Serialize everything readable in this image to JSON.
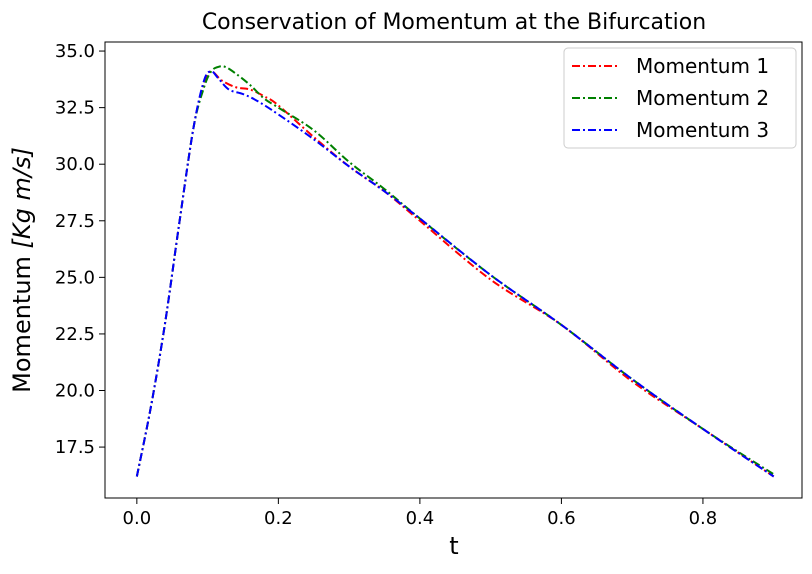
{
  "chart_data": {
    "type": "line",
    "title": "Conservation of Momentum at the Bifurcation",
    "xlabel": "t",
    "ylabel": {
      "prefix": "Momentum ",
      "unit": "[Kg m/s]"
    },
    "xlim": [
      -0.045,
      0.94
    ],
    "ylim": [
      15.25,
      35.4
    ],
    "x_ticks": [
      0.0,
      0.2,
      0.4,
      0.6,
      0.8
    ],
    "x_tick_labels": [
      "0.0",
      "0.2",
      "0.4",
      "0.6",
      "0.8"
    ],
    "y_ticks": [
      17.5,
      20.0,
      22.5,
      25.0,
      27.5,
      30.0,
      32.5,
      35.0
    ],
    "y_tick_labels": [
      "17.5",
      "20.0",
      "22.5",
      "25.0",
      "27.5",
      "30.0",
      "32.5",
      "35.0"
    ],
    "grid": false,
    "legend_position": "top-right",
    "series": [
      {
        "name": "Momentum 1",
        "color": "#ff0000",
        "dash": "dashdot",
        "x": [
          0.0,
          0.02,
          0.04,
          0.06,
          0.08,
          0.095,
          0.105,
          0.12,
          0.14,
          0.16,
          0.18,
          0.2,
          0.25,
          0.3,
          0.35,
          0.4,
          0.5,
          0.6,
          0.7,
          0.8,
          0.9
        ],
        "y": [
          16.2,
          19.3,
          23.0,
          27.4,
          31.6,
          33.6,
          34.1,
          33.7,
          33.4,
          33.3,
          33.0,
          32.6,
          31.2,
          29.9,
          28.8,
          27.5,
          24.9,
          22.9,
          20.4,
          18.3,
          16.2
        ]
      },
      {
        "name": "Momentum 2",
        "color": "#008000",
        "dash": "dashdot",
        "x": [
          0.0,
          0.02,
          0.04,
          0.06,
          0.08,
          0.095,
          0.105,
          0.115,
          0.125,
          0.14,
          0.16,
          0.18,
          0.2,
          0.25,
          0.3,
          0.35,
          0.4,
          0.5,
          0.6,
          0.7,
          0.8,
          0.9
        ],
        "y": [
          16.2,
          19.3,
          23.0,
          27.4,
          31.6,
          33.4,
          34.1,
          34.3,
          34.3,
          34.0,
          33.5,
          32.9,
          32.5,
          31.5,
          30.1,
          28.9,
          27.6,
          25.1,
          22.9,
          20.5,
          18.3,
          16.3
        ]
      },
      {
        "name": "Momentum 3",
        "color": "#0000ff",
        "dash": "dashdot",
        "x": [
          0.0,
          0.02,
          0.04,
          0.06,
          0.08,
          0.095,
          0.105,
          0.115,
          0.13,
          0.15,
          0.17,
          0.2,
          0.25,
          0.3,
          0.35,
          0.4,
          0.5,
          0.6,
          0.7,
          0.8,
          0.9
        ],
        "y": [
          16.2,
          19.3,
          23.0,
          27.4,
          31.6,
          33.7,
          34.1,
          33.8,
          33.3,
          33.1,
          32.8,
          32.2,
          31.1,
          29.9,
          28.8,
          27.6,
          25.1,
          22.9,
          20.5,
          18.3,
          16.2
        ]
      }
    ]
  }
}
